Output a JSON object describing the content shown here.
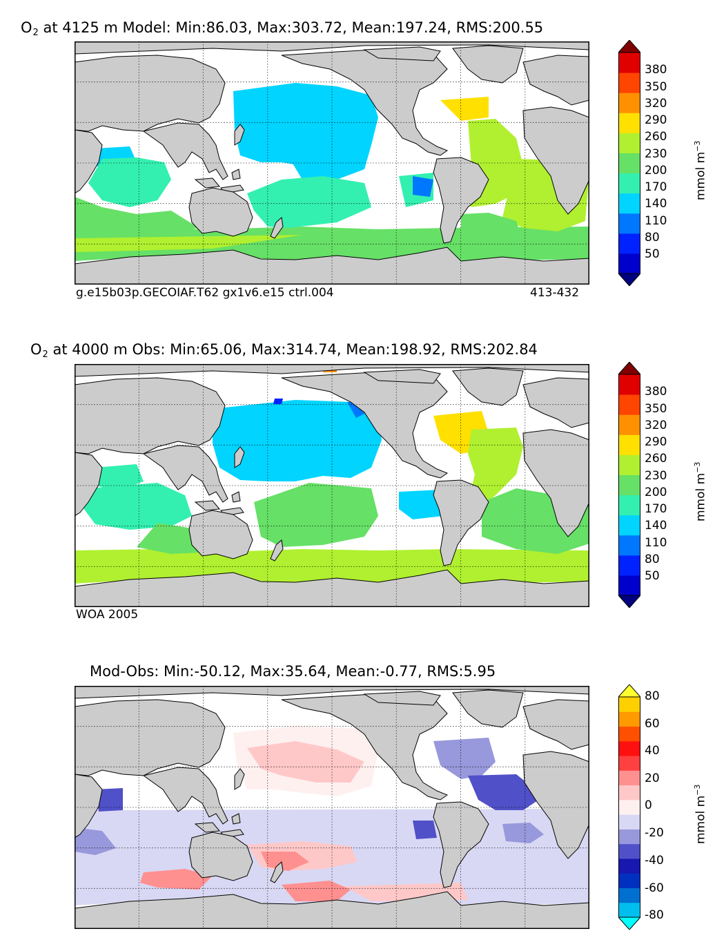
{
  "panels": [
    {
      "title_var": "O",
      "title_sub": "2",
      "title_rest": " at 4125 m Model: Min:86.03, Max:303.72, Mean:197.24, RMS:200.55",
      "footer_left": "g.e15b03p.GECOIAF.T62 gx1v6.e15 ctrl.004",
      "footer_right": "413-432",
      "colorbar": {
        "ticks": [
          "380",
          "350",
          "320",
          "290",
          "260",
          "230",
          "200",
          "170",
          "140",
          "110",
          "80",
          "50"
        ],
        "label": "mmol m",
        "label_sup": "−3",
        "colors": [
          "#000080",
          "#0000cd",
          "#0022ff",
          "#0077ff",
          "#00d4ff",
          "#33f0b0",
          "#66e066",
          "#b0f030",
          "#ffe000",
          "#ff9000",
          "#ff4500",
          "#e00000",
          "#800000"
        ]
      }
    },
    {
      "title_var": "O",
      "title_sub": "2",
      "title_rest": " at 4000 m Obs: Min:65.06, Max:314.74, Mean:198.92, RMS:202.84",
      "footer_left": "WOA 2005",
      "footer_right": "",
      "colorbar": {
        "ticks": [
          "380",
          "350",
          "320",
          "290",
          "260",
          "230",
          "200",
          "170",
          "140",
          "110",
          "80",
          "50"
        ],
        "label": "mmol m",
        "label_sup": "−3",
        "colors": [
          "#000080",
          "#0000cd",
          "#0022ff",
          "#0077ff",
          "#00d4ff",
          "#33f0b0",
          "#66e066",
          "#b0f030",
          "#ffe000",
          "#ff9000",
          "#ff4500",
          "#e00000",
          "#800000"
        ]
      }
    },
    {
      "title_var": "",
      "title_sub": "",
      "title_rest": "Mod-Obs: Min:-50.12, Max:35.64, Mean:-0.77, RMS:5.95",
      "footer_left": "",
      "footer_right": "",
      "colorbar": {
        "ticks": [
          "80",
          "60",
          "40",
          "20",
          "0",
          "-20",
          "-40",
          "-60",
          "-80"
        ],
        "label": "mmol m",
        "label_sup": "−3",
        "colors": [
          "#00ffff",
          "#00bfef",
          "#0070d0",
          "#0030c0",
          "#1818b0",
          "#5050c8",
          "#9898dc",
          "#d8d8f4",
          "#fff0f0",
          "#ffc8c8",
          "#ff9090",
          "#ff4040",
          "#ff1010",
          "#ff5000",
          "#ff9a00",
          "#ffd000",
          "#ffff30"
        ]
      }
    }
  ],
  "color_scale": {
    "ocean_empty": "#ffffff",
    "land": "#cccccc",
    "coast": "#000000"
  }
}
